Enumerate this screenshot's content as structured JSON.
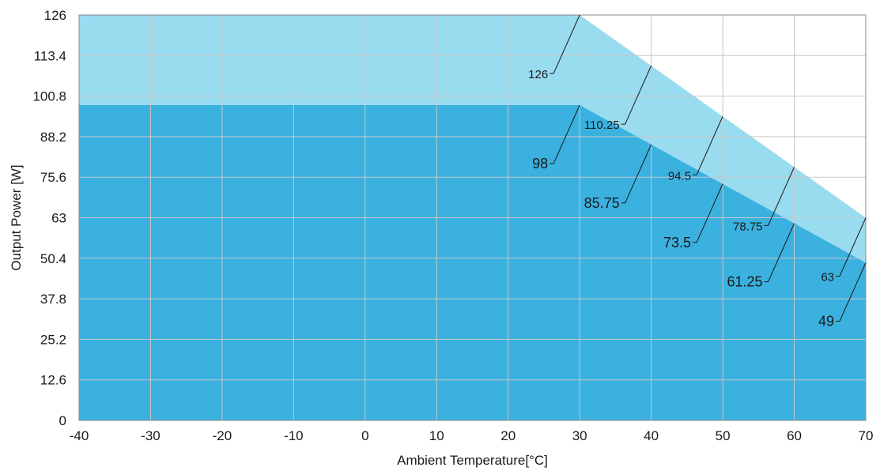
{
  "chart_data": {
    "type": "area",
    "xlabel": "Ambient Temperature[°C]",
    "ylabel": "Output Power [W]",
    "xlim": [
      -40,
      70
    ],
    "ylim": [
      0,
      126
    ],
    "x_ticks": [
      "-40",
      "-30",
      "-20",
      "-10",
      "0",
      "10",
      "20",
      "30",
      "40",
      "50",
      "60",
      "70"
    ],
    "y_ticks": [
      "0",
      "12.6",
      "25.2",
      "37.8",
      "50.4",
      "63",
      "75.6",
      "88.2",
      "100.8",
      "113.4",
      "126"
    ],
    "grid": true,
    "series": [
      {
        "color": "#99dcf0",
        "points": [
          [
            -40,
            126
          ],
          [
            30,
            126
          ],
          [
            40,
            110.25
          ],
          [
            50,
            94.5
          ],
          [
            60,
            78.75
          ],
          [
            70,
            63
          ]
        ],
        "annotations": [
          {
            "x": 30,
            "y": 126,
            "label": "126"
          },
          {
            "x": 40,
            "y": 110.25,
            "label": "110.25"
          },
          {
            "x": 50,
            "y": 94.5,
            "label": "94.5"
          },
          {
            "x": 60,
            "y": 78.75,
            "label": "78.75"
          },
          {
            "x": 70,
            "y": 63,
            "label": "63"
          }
        ]
      },
      {
        "color": "#3bb1e0",
        "points": [
          [
            -40,
            98
          ],
          [
            30,
            98
          ],
          [
            40,
            85.75
          ],
          [
            50,
            73.5
          ],
          [
            60,
            61.25
          ],
          [
            70,
            49
          ]
        ],
        "annotations": [
          {
            "x": 30,
            "y": 98,
            "label": "98"
          },
          {
            "x": 40,
            "y": 85.75,
            "label": "85.75"
          },
          {
            "x": 50,
            "y": 73.5,
            "label": "73.5"
          },
          {
            "x": 60,
            "y": 61.25,
            "label": "61.25"
          },
          {
            "x": 70,
            "y": 49,
            "label": "49"
          }
        ]
      }
    ]
  }
}
